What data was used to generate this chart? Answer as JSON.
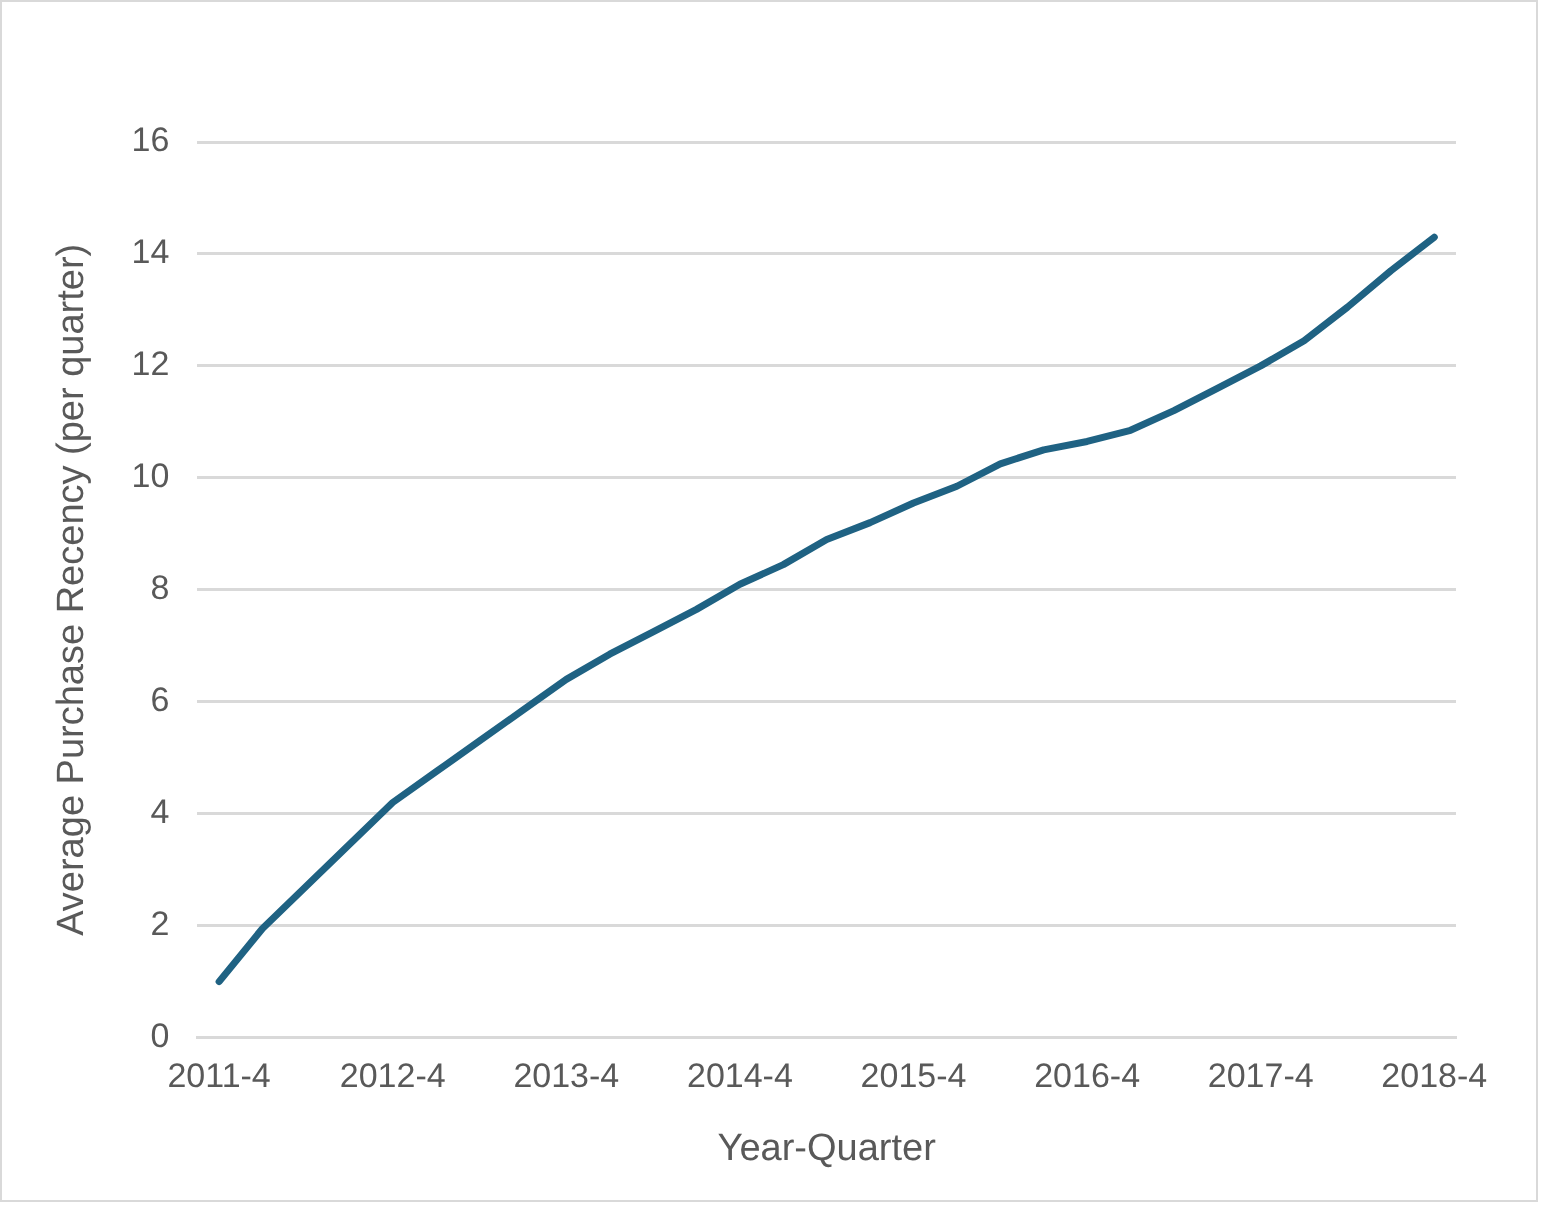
{
  "chart_data": {
    "type": "line",
    "xlabel": "Year-Quarter",
    "ylabel": "Average Purchase Recency (per quarter)",
    "categories": [
      "2011-4",
      null,
      null,
      null,
      "2012-4",
      null,
      null,
      null,
      "2013-4",
      null,
      null,
      null,
      "2014-4",
      null,
      null,
      null,
      "2015-4",
      null,
      null,
      null,
      "2016-4",
      null,
      null,
      null,
      "2017-4",
      null,
      null,
      null,
      "2018-4"
    ],
    "series": [
      {
        "color": "#1f6283",
        "values": [
          1.0,
          1.95,
          2.7,
          3.45,
          4.2,
          4.75,
          5.3,
          5.85,
          6.4,
          6.85,
          7.25,
          7.65,
          8.1,
          8.45,
          8.9,
          9.2,
          9.55,
          9.85,
          10.25,
          10.5,
          10.65,
          10.85,
          11.2,
          11.6,
          12.0,
          12.45,
          13.05,
          13.7,
          14.3
        ]
      }
    ],
    "ylim": [
      0,
      16
    ],
    "yticks": [
      0,
      2,
      4,
      6,
      8,
      10,
      12,
      14,
      16
    ],
    "grid": "y",
    "legend": false,
    "marker": "none",
    "line_style": "solid"
  }
}
